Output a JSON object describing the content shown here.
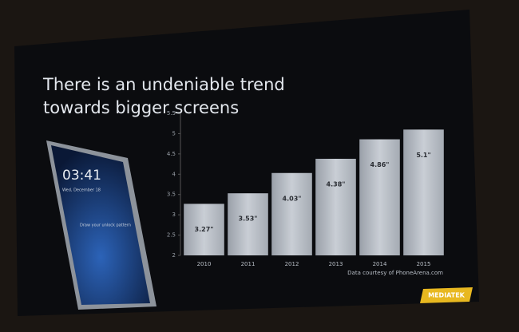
{
  "chart_data": {
    "type": "bar",
    "title": "There is an undeniable trend towards bigger screens",
    "categories": [
      "2010",
      "2011",
      "2012",
      "2013",
      "2014",
      "2015"
    ],
    "values": [
      3.27,
      3.53,
      4.03,
      4.38,
      4.86,
      5.1
    ],
    "value_labels": [
      "3.27\"",
      "3.53\"",
      "4.03\"",
      "4.38\"",
      "4.86\"",
      "5.1\""
    ],
    "color": "#b9bec6",
    "ylim": [
      2,
      5.5
    ],
    "yticks": [
      2,
      2.5,
      3,
      3.5,
      4,
      4.5,
      5,
      5.5
    ],
    "annotation": "Data courtesy of PhoneArena.com",
    "logo": "MEDIATEK",
    "phone": {
      "time": "03:41",
      "date": "Wed, December 18",
      "hint": "Draw your unlock pattern"
    }
  }
}
